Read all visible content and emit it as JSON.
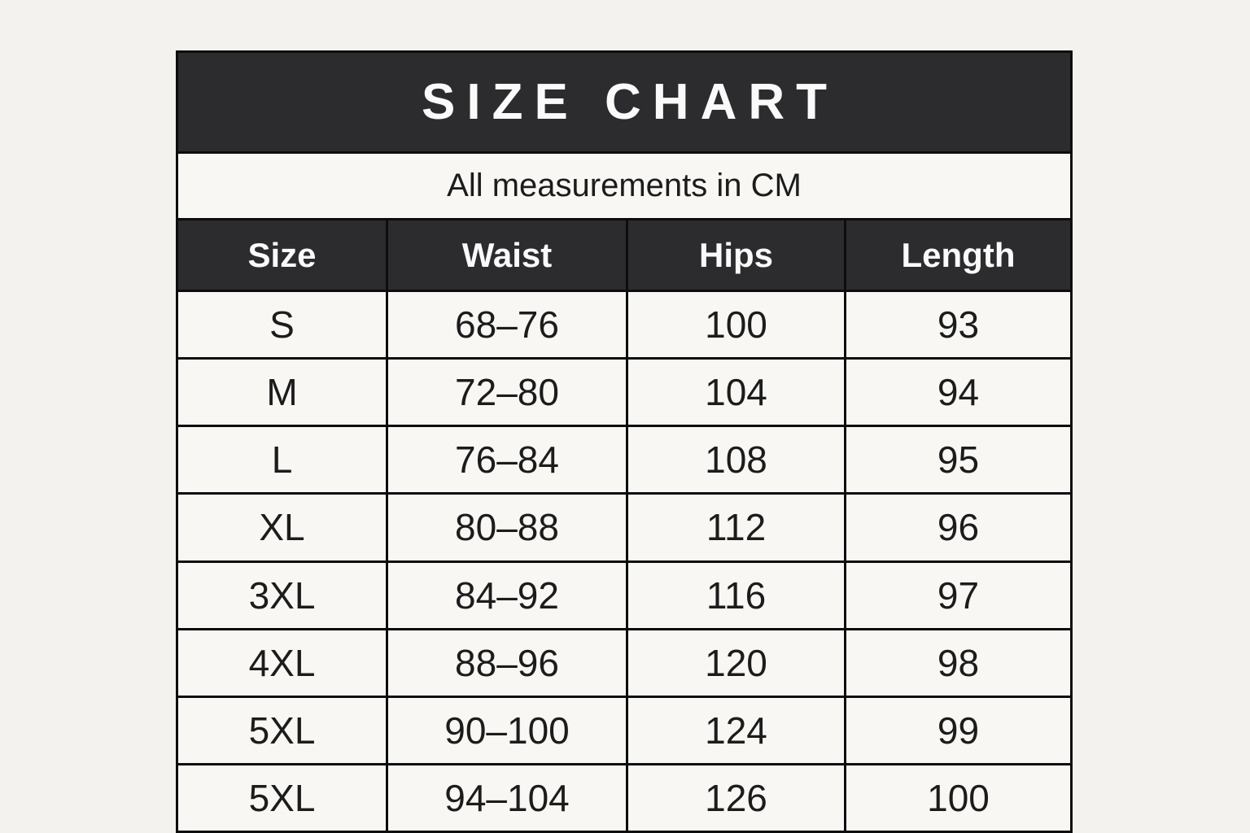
{
  "page": {
    "background_color": "#f4f2ee"
  },
  "table": {
    "title": "SIZE CHART",
    "subtitle": "All measurements in CM",
    "colors": {
      "band_bg": "#2c2c2f",
      "band_text": "#fafafa",
      "cell_bg": "#f8f7f4",
      "cell_text": "#1c1c1c",
      "border": "#0d0d0d"
    },
    "columns": [
      "Size",
      "Waist",
      "Hips",
      "Length"
    ],
    "rows": [
      [
        "S",
        "68–76",
        "100",
        "93"
      ],
      [
        "M",
        "72–80",
        "104",
        "94"
      ],
      [
        "L",
        "76–84",
        "108",
        "95"
      ],
      [
        "XL",
        "80–88",
        "112",
        "96"
      ],
      [
        "3XL",
        "84–92",
        "116",
        "97"
      ],
      [
        "4XL",
        "88–96",
        "120",
        "98"
      ],
      [
        "5XL",
        "90–100",
        "124",
        "99"
      ],
      [
        "5XL",
        "94–104",
        "126",
        "100"
      ]
    ]
  },
  "chart_data": {
    "type": "table",
    "title": "SIZE CHART",
    "subtitle": "All measurements in CM",
    "columns": [
      "Size",
      "Waist",
      "Hips",
      "Length"
    ],
    "rows": [
      [
        "S",
        "68–76",
        "100",
        "93"
      ],
      [
        "M",
        "72–80",
        "104",
        "94"
      ],
      [
        "L",
        "76–84",
        "108",
        "95"
      ],
      [
        "XL",
        "80–88",
        "112",
        "96"
      ],
      [
        "3XL",
        "84–92",
        "116",
        "97"
      ],
      [
        "4XL",
        "88–96",
        "120",
        "98"
      ],
      [
        "5XL",
        "90–100",
        "124",
        "99"
      ],
      [
        "5XL",
        "94–104",
        "126",
        "100"
      ]
    ],
    "units": "CM"
  }
}
